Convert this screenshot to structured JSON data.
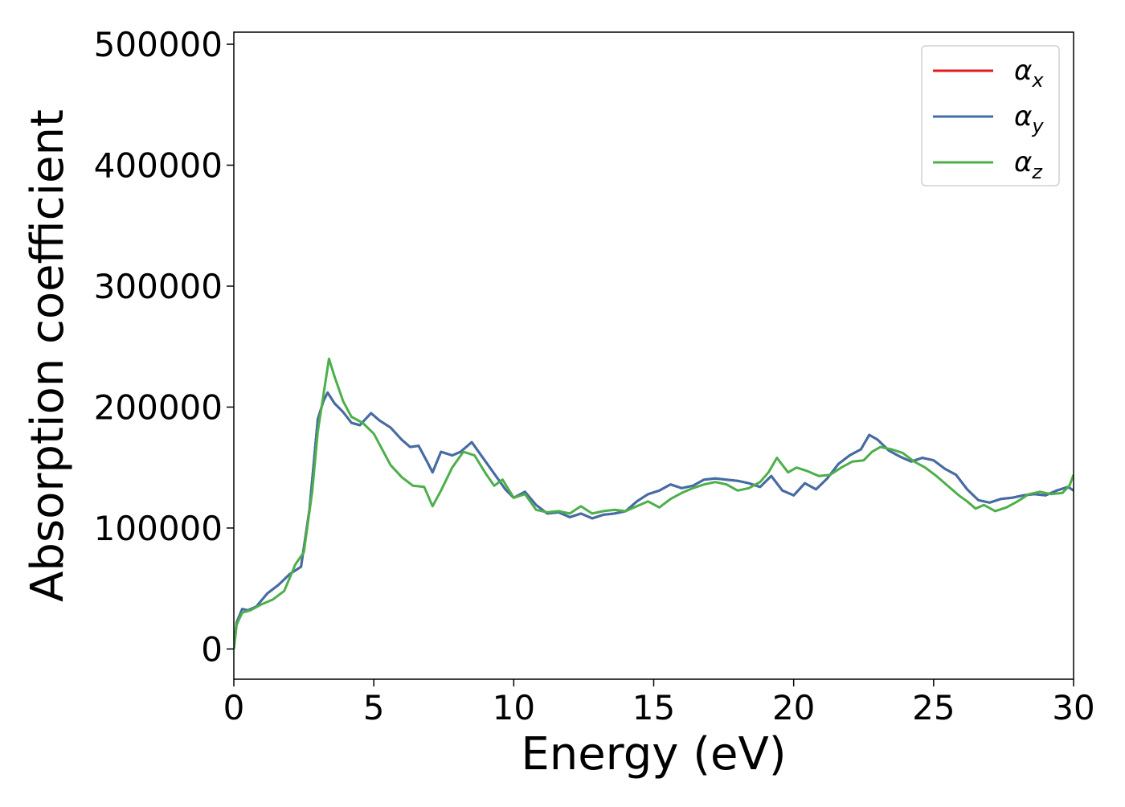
{
  "chart_data": {
    "type": "line",
    "title": "",
    "xlabel": "Energy (eV)",
    "ylabel": "Absorption coefficient",
    "xlim": [
      0,
      30
    ],
    "ylim": [
      -25000,
      510000
    ],
    "xticks": [
      0,
      5,
      10,
      15,
      20,
      25,
      30
    ],
    "yticks": [
      0,
      100000,
      200000,
      300000,
      400000,
      500000
    ],
    "grid": false,
    "legend": {
      "position": "top-right"
    },
    "series": [
      {
        "name": "αx",
        "symbol": "α",
        "subscript": "x",
        "color": "#e41a1c",
        "x": [
          0,
          0.1,
          0.3,
          0.5,
          0.8,
          1.2,
          1.6,
          2.0,
          2.4,
          2.7,
          3.0,
          3.2,
          3.35,
          3.6,
          3.9,
          4.2,
          4.5,
          4.9,
          5.2,
          5.6,
          6.0,
          6.3,
          6.6,
          6.9,
          7.1,
          7.4,
          7.8,
          8.1,
          8.5,
          8.9,
          9.3,
          9.7,
          10.0,
          10.4,
          10.8,
          11.2,
          11.6,
          12.0,
          12.4,
          12.8,
          13.2,
          13.6,
          14.0,
          14.4,
          14.8,
          15.2,
          15.6,
          16.0,
          16.4,
          16.8,
          17.2,
          17.6,
          18.0,
          18.4,
          18.8,
          19.2,
          19.6,
          20.0,
          20.4,
          20.8,
          21.2,
          21.6,
          22.0,
          22.4,
          22.7,
          23.0,
          23.4,
          23.8,
          24.2,
          24.6,
          25.0,
          25.4,
          25.8,
          26.2,
          26.6,
          27.0,
          27.4,
          27.8,
          28.2,
          28.6,
          29.0,
          29.4,
          29.8,
          30.0
        ],
        "y": [
          0,
          22000,
          33000,
          32000,
          35000,
          46000,
          53000,
          62000,
          68000,
          115000,
          190000,
          205000,
          212000,
          203000,
          196000,
          187000,
          185000,
          195000,
          189000,
          183000,
          173000,
          167000,
          168000,
          155000,
          146000,
          163000,
          160000,
          163000,
          171000,
          158000,
          145000,
          132000,
          125000,
          130000,
          119000,
          112000,
          113000,
          109000,
          112000,
          108000,
          111000,
          112000,
          114000,
          122000,
          128000,
          131000,
          136000,
          133000,
          135000,
          140000,
          141000,
          140000,
          139000,
          137000,
          134000,
          143000,
          131000,
          127000,
          137000,
          132000,
          141000,
          153000,
          160000,
          165000,
          177000,
          173000,
          164000,
          159000,
          155000,
          158000,
          156000,
          149000,
          144000,
          132000,
          123000,
          121000,
          124000,
          125000,
          127000,
          128000,
          127000,
          131000,
          134000,
          131000
        ]
      },
      {
        "name": "αy",
        "symbol": "α",
        "subscript": "y",
        "color": "#3f6ea8",
        "x": [
          0,
          0.1,
          0.3,
          0.5,
          0.8,
          1.2,
          1.6,
          2.0,
          2.4,
          2.7,
          3.0,
          3.2,
          3.35,
          3.6,
          3.9,
          4.2,
          4.5,
          4.9,
          5.2,
          5.6,
          6.0,
          6.3,
          6.6,
          6.9,
          7.1,
          7.4,
          7.8,
          8.1,
          8.5,
          8.9,
          9.3,
          9.7,
          10.0,
          10.4,
          10.8,
          11.2,
          11.6,
          12.0,
          12.4,
          12.8,
          13.2,
          13.6,
          14.0,
          14.4,
          14.8,
          15.2,
          15.6,
          16.0,
          16.4,
          16.8,
          17.2,
          17.6,
          18.0,
          18.4,
          18.8,
          19.2,
          19.6,
          20.0,
          20.4,
          20.8,
          21.2,
          21.6,
          22.0,
          22.4,
          22.7,
          23.0,
          23.4,
          23.8,
          24.2,
          24.6,
          25.0,
          25.4,
          25.8,
          26.2,
          26.6,
          27.0,
          27.4,
          27.8,
          28.2,
          28.6,
          29.0,
          29.4,
          29.8,
          30.0
        ],
        "y": [
          0,
          22000,
          33000,
          32000,
          35000,
          46000,
          53000,
          62000,
          68000,
          115000,
          190000,
          205000,
          212000,
          203000,
          196000,
          187000,
          185000,
          195000,
          189000,
          183000,
          173000,
          167000,
          168000,
          155000,
          146000,
          163000,
          160000,
          163000,
          171000,
          158000,
          145000,
          132000,
          125000,
          130000,
          119000,
          112000,
          113000,
          109000,
          112000,
          108000,
          111000,
          112000,
          114000,
          122000,
          128000,
          131000,
          136000,
          133000,
          135000,
          140000,
          141000,
          140000,
          139000,
          137000,
          134000,
          143000,
          131000,
          127000,
          137000,
          132000,
          141000,
          153000,
          160000,
          165000,
          177000,
          173000,
          164000,
          159000,
          155000,
          158000,
          156000,
          149000,
          144000,
          132000,
          123000,
          121000,
          124000,
          125000,
          127000,
          128000,
          127000,
          131000,
          134000,
          131000
        ]
      },
      {
        "name": "αz",
        "symbol": "α",
        "subscript": "z",
        "color": "#4daf4a",
        "x": [
          0,
          0.1,
          0.3,
          0.6,
          1.0,
          1.4,
          1.8,
          2.2,
          2.5,
          2.8,
          3.0,
          3.2,
          3.4,
          3.6,
          3.9,
          4.2,
          4.6,
          5.0,
          5.3,
          5.6,
          6.0,
          6.4,
          6.8,
          7.1,
          7.4,
          7.8,
          8.2,
          8.6,
          9.0,
          9.3,
          9.6,
          10.0,
          10.4,
          10.8,
          11.2,
          11.6,
          12.0,
          12.4,
          12.8,
          13.2,
          13.6,
          14.0,
          14.4,
          14.8,
          15.2,
          15.6,
          16.0,
          16.4,
          16.8,
          17.2,
          17.6,
          18.0,
          18.4,
          18.8,
          19.1,
          19.4,
          19.8,
          20.1,
          20.5,
          20.9,
          21.3,
          21.7,
          22.1,
          22.5,
          22.8,
          23.1,
          23.5,
          23.9,
          24.3,
          24.7,
          25.1,
          25.5,
          25.9,
          26.2,
          26.5,
          26.8,
          27.2,
          27.6,
          28.0,
          28.4,
          28.8,
          29.2,
          29.6,
          29.85,
          30.0
        ],
        "y": [
          0,
          20000,
          30000,
          32000,
          37000,
          41000,
          48000,
          70000,
          80000,
          130000,
          180000,
          210000,
          240000,
          225000,
          205000,
          192000,
          187000,
          178000,
          165000,
          152000,
          142000,
          135000,
          134000,
          118000,
          131000,
          150000,
          163000,
          160000,
          145000,
          135000,
          140000,
          125000,
          128000,
          115000,
          113000,
          114000,
          112000,
          118000,
          112000,
          114000,
          115000,
          114000,
          118000,
          122000,
          117000,
          124000,
          129000,
          133000,
          136000,
          138000,
          136000,
          131000,
          133000,
          138000,
          146000,
          158000,
          146000,
          150000,
          147000,
          143000,
          144000,
          150000,
          155000,
          156000,
          163000,
          167000,
          165000,
          162000,
          155000,
          150000,
          143000,
          135000,
          127000,
          122000,
          116000,
          119000,
          114000,
          117000,
          122000,
          128000,
          130000,
          128000,
          129000,
          135000,
          144000
        ]
      }
    ]
  }
}
